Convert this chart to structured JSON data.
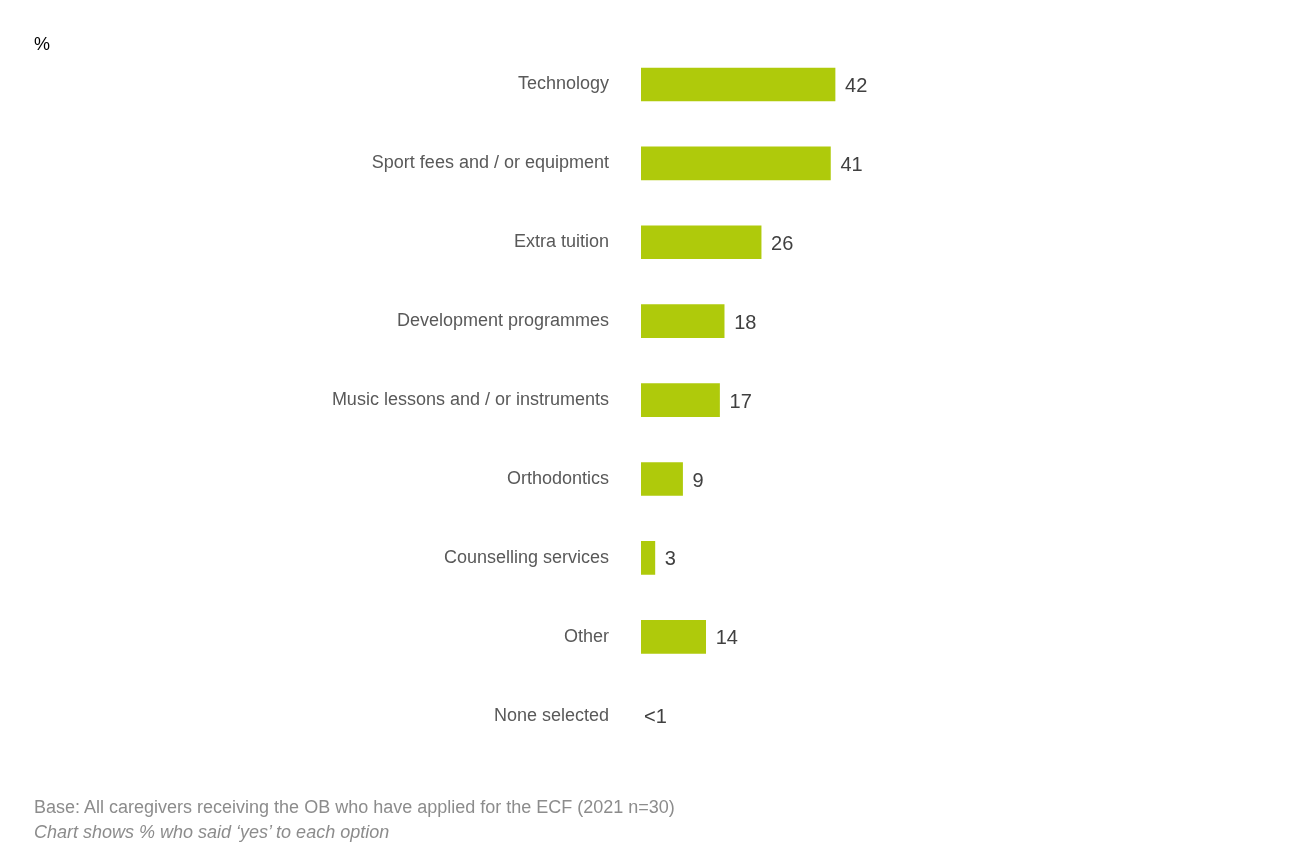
{
  "chart_data": {
    "type": "bar",
    "orientation": "horizontal",
    "title": "%",
    "categories": [
      "Technology",
      "Sport fees and / or equipment",
      "Extra tuition",
      "Development programmes",
      "Music lessons and / or instruments",
      "Orthodontics",
      "Counselling services",
      "Other",
      "None selected"
    ],
    "values": [
      42,
      41,
      26,
      18,
      17,
      9,
      3,
      14,
      null
    ],
    "value_labels": [
      "42",
      "41",
      "26",
      "18",
      "17",
      "9",
      "3",
      "14",
      "<1"
    ],
    "color": "#afca0b",
    "grid": false,
    "legend": false,
    "annotations": [
      "Base: All caregivers receiving the OB who have applied for the ECF (2021 n=30)",
      "Chart shows % who said ‘yes’ to each option"
    ]
  }
}
